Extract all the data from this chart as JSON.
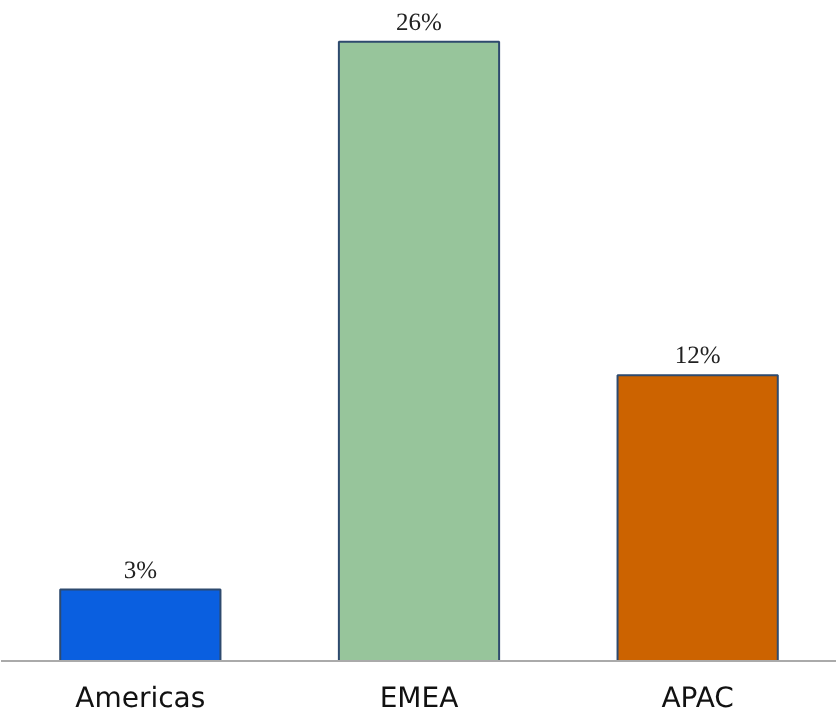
{
  "chart_data": {
    "type": "bar",
    "categories": [
      "Americas",
      "EMEA",
      "APAC"
    ],
    "values": [
      3,
      26,
      12
    ],
    "colors": [
      "#0a5fe0",
      "#97c59b",
      "#cc6300"
    ],
    "value_labels": [
      "3%",
      "26%",
      "12%"
    ]
  }
}
